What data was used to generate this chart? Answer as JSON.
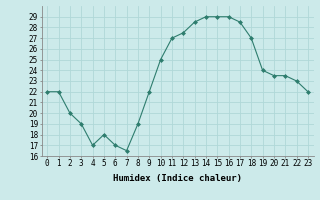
{
  "x": [
    0,
    1,
    2,
    3,
    4,
    5,
    6,
    7,
    8,
    9,
    10,
    11,
    12,
    13,
    14,
    15,
    16,
    17,
    18,
    19,
    20,
    21,
    22,
    23
  ],
  "y": [
    22,
    22,
    20,
    19,
    17,
    18,
    17,
    16.5,
    19,
    22,
    25,
    27,
    27.5,
    28.5,
    29,
    29,
    29,
    28.5,
    27,
    24,
    23.5,
    23.5,
    23,
    22
  ],
  "line_color": "#2e7d6e",
  "marker": "D",
  "marker_size": 2.0,
  "bg_color": "#cceaea",
  "grid_color": "#b0d8d8",
  "xlabel": "Humidex (Indice chaleur)",
  "ylim": [
    16,
    30
  ],
  "xlim": [
    -0.5,
    23.5
  ],
  "yticks": [
    16,
    17,
    18,
    19,
    20,
    21,
    22,
    23,
    24,
    25,
    26,
    27,
    28,
    29
  ],
  "xticks": [
    0,
    1,
    2,
    3,
    4,
    5,
    6,
    7,
    8,
    9,
    10,
    11,
    12,
    13,
    14,
    15,
    16,
    17,
    18,
    19,
    20,
    21,
    22,
    23
  ],
  "xtick_labels": [
    "0",
    "1",
    "2",
    "3",
    "4",
    "5",
    "6",
    "7",
    "8",
    "9",
    "10",
    "11",
    "12",
    "13",
    "14",
    "15",
    "16",
    "17",
    "18",
    "19",
    "20",
    "21",
    "22",
    "23"
  ],
  "label_fontsize": 6.5,
  "tick_fontsize": 5.5
}
